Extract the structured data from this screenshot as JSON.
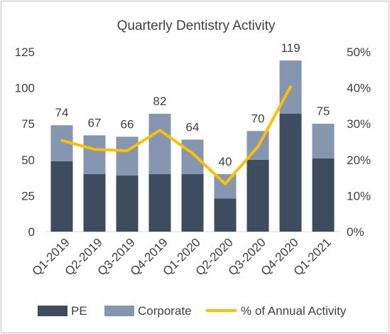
{
  "chart_data": {
    "type": "bar",
    "title": "Quarterly Dentistry Activity",
    "categories": [
      "Q1-2019",
      "Q2-2019",
      "Q3-2019",
      "Q4-2019",
      "Q1-2020",
      "Q2-2020",
      "Q3-2020",
      "Q4-2020",
      "Q1-2021"
    ],
    "series": [
      {
        "name": "PE",
        "type": "bar",
        "stack": "main",
        "color": "#3d4c5f",
        "axis": "left",
        "values": [
          49,
          40,
          39,
          40,
          40,
          23,
          50,
          82,
          51
        ]
      },
      {
        "name": "Corporate",
        "type": "bar",
        "stack": "main",
        "color": "#8496b0",
        "axis": "left",
        "values": [
          25,
          27,
          27,
          42,
          24,
          17,
          20,
          37,
          24
        ]
      },
      {
        "name": "% of Annual Activity",
        "type": "line",
        "color": "#ffc000",
        "axis": "right",
        "values": [
          25.4,
          22.9,
          22.5,
          28.2,
          21.8,
          13.3,
          23.6,
          40.3,
          null
        ]
      }
    ],
    "totals": [
      "74",
      "67",
      "66",
      "82",
      "64",
      "40",
      "70",
      "119",
      "75"
    ],
    "y_left": {
      "ylim": [
        0,
        125
      ],
      "ticks": [
        "0",
        "25",
        "50",
        "75",
        "100",
        "125"
      ]
    },
    "y_right": {
      "ylim": [
        0,
        50
      ],
      "ticks": [
        "0%",
        "10%",
        "20%",
        "30%",
        "40%",
        "50%"
      ]
    },
    "legend": {
      "position": "bottom",
      "entries": [
        "PE",
        "Corporate",
        "% of Annual Activity"
      ]
    },
    "grid": false
  }
}
